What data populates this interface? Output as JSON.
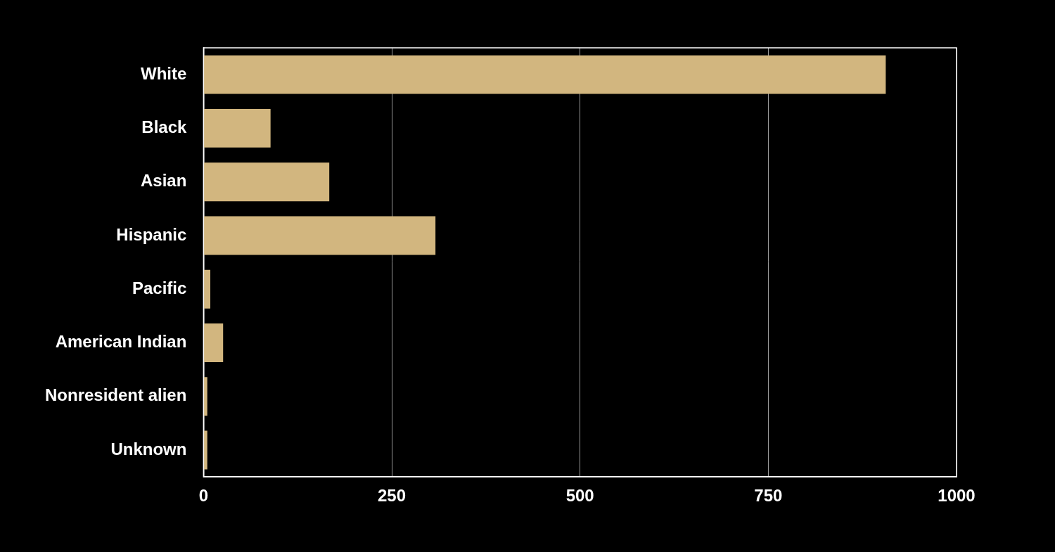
{
  "chart_data": {
    "type": "bar",
    "orientation": "horizontal",
    "categories": [
      "White",
      "Black",
      "Asian",
      "Hispanic",
      "Pacific",
      "American Indian",
      "Nonresident alien",
      "Unknown"
    ],
    "values": [
      906,
      89,
      167,
      308,
      9,
      26,
      5,
      5
    ],
    "color": "#d2b67f",
    "xlim": [
      0,
      1000
    ],
    "xticks": [
      0,
      250,
      500,
      750,
      1000
    ],
    "grid": true
  }
}
